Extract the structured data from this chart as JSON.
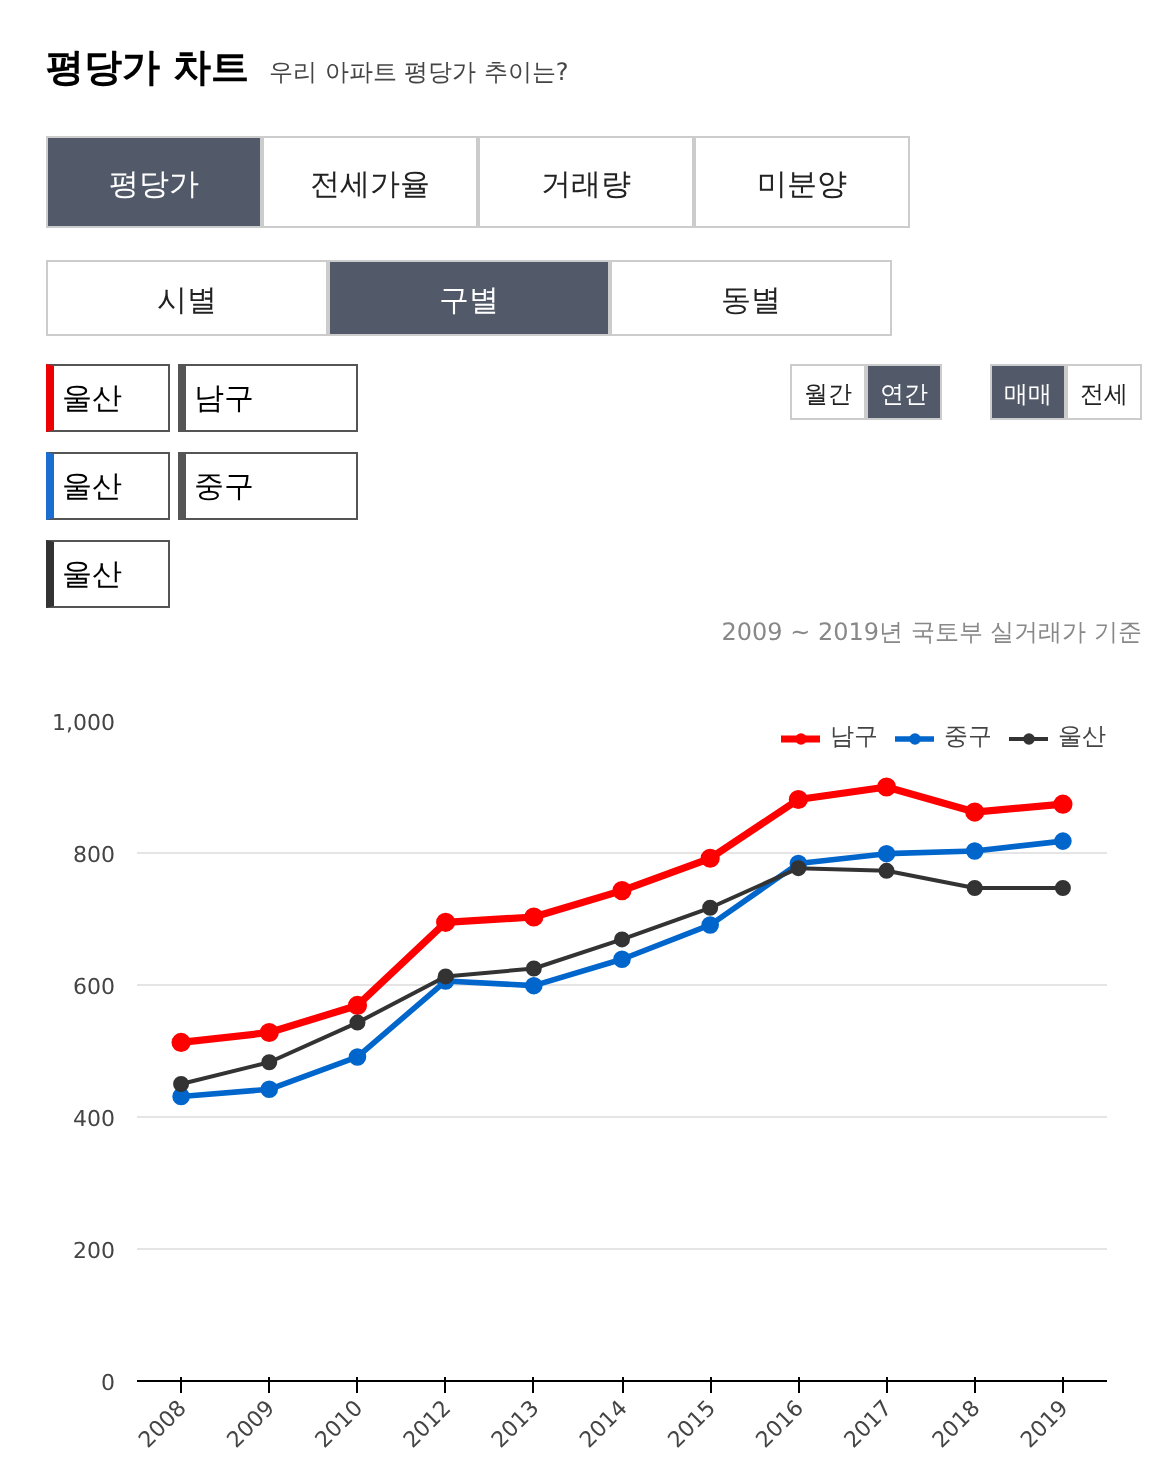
{
  "chart_data": {
    "type": "line",
    "title": "평당가 차트",
    "subtitle": "우리 아파트 평당가 추이는?",
    "annotations": [
      "평당가",
      "전세가율",
      "거래량",
      "미분양",
      "시별",
      "구별",
      "동별",
      "울산",
      "남구",
      "울산",
      "중구",
      "울산",
      "월간",
      "연간",
      "매매",
      "전세",
      "2009 ~ 2019년 국토부 실거래가 기준"
    ],
    "categories": [
      "2008",
      "2009",
      "2010",
      "2012",
      "2013",
      "2014",
      "2015",
      "2016",
      "2017",
      "2018",
      "2019"
    ],
    "series": [
      {
        "name": "남구",
        "color": "#ff0000",
        "values": [
          513,
          528,
          569,
          695,
          703,
          743,
          792,
          881,
          900,
          862,
          874
        ]
      },
      {
        "name": "중구",
        "color": "#0066cc",
        "values": [
          431,
          442,
          491,
          606,
          599,
          639,
          691,
          784,
          799,
          803,
          818
        ]
      },
      {
        "name": "울산",
        "color": "#333333",
        "values": [
          450,
          483,
          543,
          613,
          625,
          669,
          717,
          777,
          773,
          747,
          747
        ]
      }
    ],
    "ylim": [
      0,
      1000
    ],
    "yticks": [
      0,
      200,
      400,
      600,
      800,
      {
        "value": 1000,
        "label": "1,000"
      }
    ],
    "grid": "y",
    "legend": "top right",
    "marker": "circle",
    "line_style": "solid"
  }
}
